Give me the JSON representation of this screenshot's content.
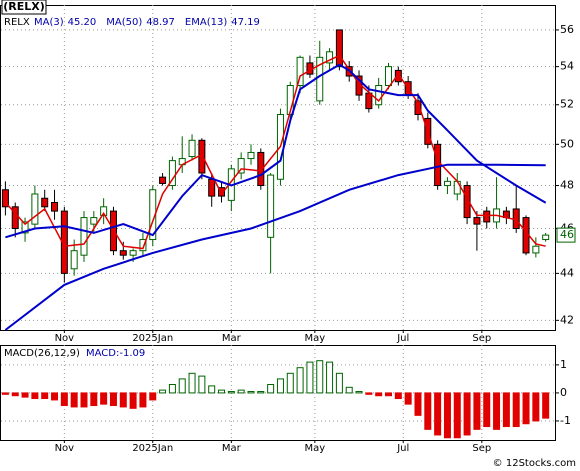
{
  "chart_data": [
    {
      "type": "candlestick",
      "title": "(RELX)",
      "symbol": "RELX",
      "log_scale": true,
      "grid": true,
      "xlim": [
        -0.5,
        56
      ],
      "ylim": [
        41.6,
        57.4
      ],
      "yticks": [
        42,
        44,
        46,
        48,
        50,
        52,
        54,
        56
      ],
      "xticks": [
        {
          "value": 6,
          "label": "Nov"
        },
        {
          "value": 15,
          "label": "2025Jan"
        },
        {
          "value": 23,
          "label": "Mar"
        },
        {
          "value": 31.5,
          "label": "May"
        },
        {
          "value": 40.5,
          "label": "Jul"
        },
        {
          "value": 48.5,
          "label": "Sep"
        }
      ],
      "up_color": "#006400",
      "down_color": "#e00000",
      "open": [
        47.8,
        47.0,
        45.8,
        46.2,
        47.4,
        47.2,
        46.8,
        44.2,
        44.8,
        46.2,
        46.6,
        46.8,
        45.0,
        44.8,
        45.0,
        45.5,
        48.4,
        48.0,
        49.0,
        49.4,
        50.2,
        48.3,
        47.9,
        47.3,
        48.6,
        49.3,
        49.6,
        45.6,
        48.3,
        51.5,
        53.0,
        54.2,
        52.2,
        54.2,
        56.0,
        54.0,
        53.5,
        52.6,
        52.0,
        53.0,
        53.8,
        53.2,
        52.2,
        51.3,
        50.0,
        48.0,
        47.6,
        48.0,
        46.5,
        46.8,
        46.3,
        46.8,
        46.9,
        46.5,
        44.9,
        45.5
      ],
      "high": [
        48.2,
        47.2,
        46.5,
        48.0,
        47.8,
        47.8,
        47.0,
        45.5,
        46.8,
        46.8,
        47.4,
        47.0,
        45.4,
        45.1,
        45.8,
        48.0,
        48.6,
        49.4,
        50.4,
        50.5,
        50.3,
        48.6,
        48.2,
        49.0,
        49.6,
        50.0,
        49.8,
        48.6,
        51.8,
        53.2,
        54.6,
        54.6,
        55.4,
        55.0,
        56.0,
        54.3,
        53.8,
        53.0,
        53.4,
        54.2,
        54.0,
        53.5,
        52.6,
        51.6,
        50.2,
        48.4,
        48.6,
        48.2,
        46.8,
        47.0,
        48.4,
        47.0,
        48.0,
        46.6,
        45.6,
        45.8
      ],
      "low": [
        46.6,
        45.6,
        45.4,
        46.0,
        46.8,
        46.4,
        43.6,
        43.9,
        44.5,
        45.8,
        46.2,
        44.8,
        44.6,
        44.5,
        44.8,
        45.2,
        48.0,
        47.8,
        48.6,
        49.2,
        48.3,
        47.0,
        47.2,
        46.8,
        48.3,
        49.0,
        47.8,
        44.0,
        48.0,
        51.2,
        52.6,
        53.4,
        52.0,
        53.8,
        53.8,
        53.2,
        52.2,
        51.6,
        51.8,
        52.8,
        53.0,
        52.3,
        51.2,
        49.8,
        47.8,
        47.6,
        47.3,
        46.2,
        45.0,
        46.0,
        46.0,
        46.2,
        45.8,
        44.8,
        44.7,
        45.4
      ],
      "close": [
        47.0,
        46.0,
        46.3,
        47.6,
        47.0,
        46.8,
        44.0,
        45.0,
        46.5,
        46.5,
        47.0,
        45.0,
        44.8,
        45.0,
        45.5,
        47.8,
        48.1,
        49.2,
        49.3,
        50.2,
        48.6,
        47.5,
        47.5,
        48.8,
        49.3,
        49.6,
        48.0,
        48.5,
        51.5,
        53.0,
        54.5,
        53.6,
        54.5,
        54.8,
        54.0,
        53.5,
        52.5,
        51.8,
        53.0,
        54.0,
        53.2,
        52.5,
        51.5,
        50.0,
        48.0,
        48.2,
        48.2,
        46.5,
        46.2,
        46.3,
        46.9,
        46.5,
        46.0,
        44.9,
        45.2,
        45.7
      ],
      "last_price": {
        "value": 45.7,
        "label": "46"
      },
      "series": [
        {
          "name": "MA(3)",
          "value_label": "45.20",
          "color": "#e00000",
          "width": 1.5,
          "x": [
            0,
            2,
            4,
            6,
            8,
            10,
            12,
            14,
            16,
            18,
            20,
            22,
            24,
            26,
            28,
            30,
            32,
            34,
            36,
            38,
            40,
            42,
            44,
            46,
            48,
            50,
            52,
            54,
            55
          ],
          "values": [
            47.2,
            46.2,
            46.9,
            45.2,
            45.3,
            46.7,
            45.2,
            45.1,
            47.6,
            49.0,
            49.5,
            47.6,
            48.8,
            48.7,
            49.9,
            53.5,
            54.1,
            54.6,
            53.1,
            52.2,
            53.6,
            52.1,
            49.2,
            48.2,
            46.6,
            46.6,
            46.4,
            45.3,
            45.2
          ]
        },
        {
          "name": "MA(50)",
          "value_label": "48.97",
          "color": "#0000cc",
          "width": 2,
          "x": [
            0,
            6,
            10,
            15,
            20,
            25,
            30,
            35,
            40,
            45,
            50,
            55
          ],
          "values": [
            41.6,
            43.5,
            44.2,
            44.9,
            45.5,
            46.0,
            46.8,
            47.8,
            48.5,
            49.0,
            49.0,
            48.97
          ]
        },
        {
          "name": "EMA(13)",
          "value_label": "47.19",
          "color": "#0000cc",
          "width": 2,
          "x": [
            0,
            3,
            6,
            9,
            12,
            15,
            18,
            20,
            23,
            26,
            28,
            29,
            30,
            32,
            34,
            35,
            37,
            40,
            42,
            43,
            45,
            48,
            52,
            55
          ],
          "values": [
            45.6,
            46.0,
            46.1,
            45.8,
            46.2,
            45.7,
            47.5,
            48.5,
            48.0,
            48.5,
            49.2,
            51.2,
            52.8,
            53.5,
            54.1,
            53.8,
            52.8,
            52.5,
            52.5,
            51.7,
            50.7,
            49.2,
            48.0,
            47.19
          ]
        }
      ]
    },
    {
      "type": "bar",
      "title": "MACD(26,12,9)",
      "value_label": "MACD:-1.09",
      "grid": true,
      "xlim": [
        -0.5,
        56
      ],
      "ylim": [
        -1.68,
        1.71
      ],
      "yticks": [
        -1,
        0,
        1
      ],
      "xticks": [
        {
          "value": 6,
          "label": "Nov"
        },
        {
          "value": 15,
          "label": "2025Jan"
        },
        {
          "value": 23,
          "label": "Mar"
        },
        {
          "value": 31.5,
          "label": "May"
        },
        {
          "value": 40.5,
          "label": "Jul"
        },
        {
          "value": 48.5,
          "label": "Sep"
        }
      ],
      "up_color": "#006400",
      "down_color": "#e00000",
      "values": [
        -0.05,
        -0.1,
        -0.15,
        -0.2,
        -0.2,
        -0.25,
        -0.45,
        -0.5,
        -0.5,
        -0.45,
        -0.4,
        -0.45,
        -0.5,
        -0.55,
        -0.5,
        -0.25,
        0.1,
        0.3,
        0.5,
        0.7,
        0.6,
        0.25,
        0.1,
        0.05,
        0.1,
        0.05,
        0.05,
        0.3,
        0.5,
        0.7,
        0.9,
        1.1,
        1.15,
        1.1,
        0.7,
        0.2,
        0.05,
        -0.05,
        -0.1,
        -0.1,
        -0.2,
        -0.4,
        -0.8,
        -1.3,
        -1.5,
        -1.6,
        -1.6,
        -1.5,
        -1.3,
        -1.2,
        -1.3,
        -1.2,
        -1.2,
        -1.1,
        -1.0,
        -0.9
      ]
    }
  ],
  "footer": "© 12Stocks.com"
}
